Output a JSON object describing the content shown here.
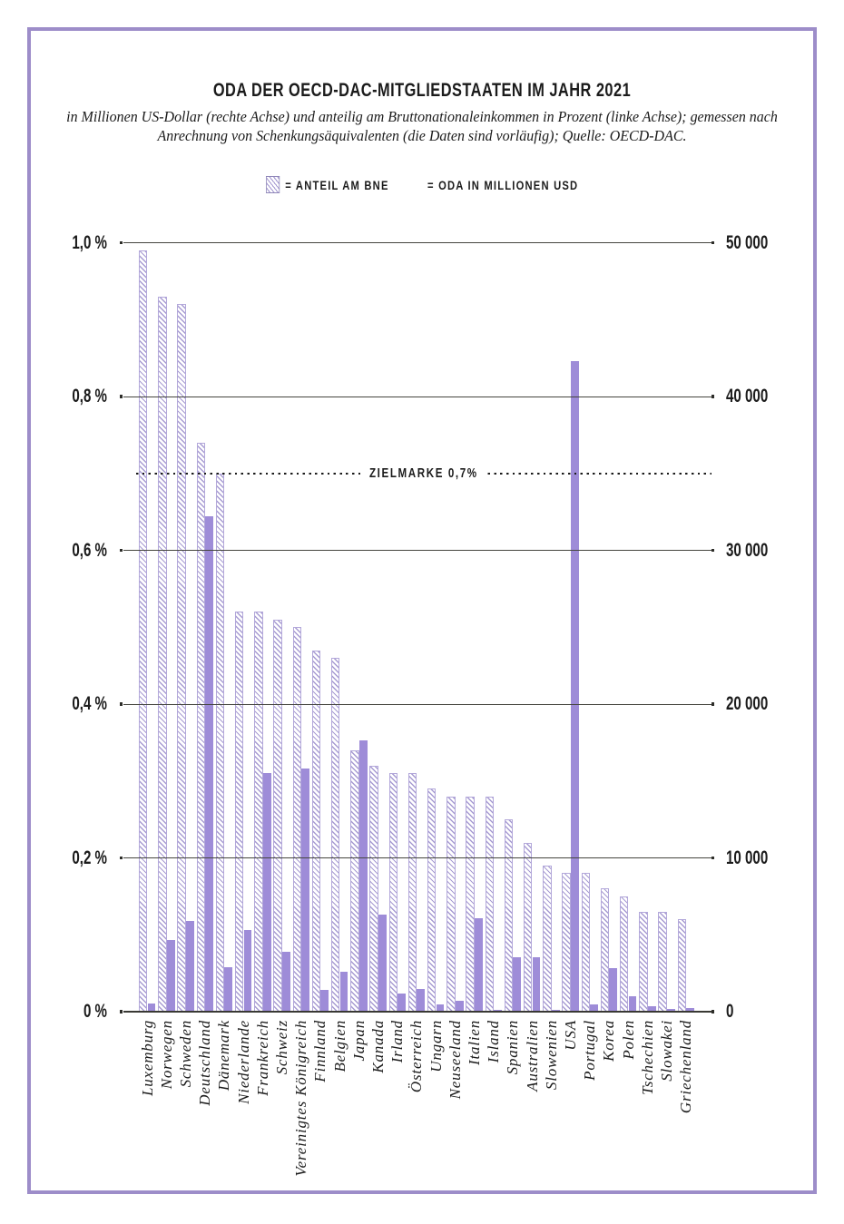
{
  "title": "ODA DER OECD-DAC-MITGLIEDSTAATEN IM JAHR 2021",
  "subtitle_line1": "in Millionen US-Dollar (rechte Achse) und anteilig am Bruttonationaleinkommen in Prozent (linke Achse); gemessen nach",
  "subtitle_line2": "Anrechnung von Schenkungsäquivalenten (die Daten sind vorläufig); Quelle: OECD-DAC.",
  "legend": {
    "share_label": "= ANTEIL AM BNE",
    "oda_label": "= ODA IN MILLIONEN USD"
  },
  "chart_data": {
    "type": "bar",
    "title": "ODA der OECD-DAC-Mitgliedstaaten im Jahr 2021",
    "categories": [
      "Luxemburg",
      "Norwegen",
      "Schweden",
      "Deutschland",
      "Dänemark",
      "Niederlande",
      "Frankreich",
      "Schweiz",
      "Vereinigtes Königreich",
      "Finnland",
      "Belgien",
      "Japan",
      "Kanada",
      "Irland",
      "Österreich",
      "Ungarn",
      "Neuseeland",
      "Italien",
      "Island",
      "Spanien",
      "Australien",
      "Slowenien",
      "USA",
      "Portugal",
      "Korea",
      "Polen",
      "Tschechien",
      "Slowakei",
      "Griechenland"
    ],
    "series": [
      {
        "name": "Anteil am BNE",
        "axis": "left",
        "unit": "% des BNE",
        "style": "hatched",
        "values": [
          0.99,
          0.93,
          0.92,
          0.74,
          0.7,
          0.52,
          0.52,
          0.51,
          0.5,
          0.47,
          0.46,
          0.34,
          0.32,
          0.31,
          0.31,
          0.29,
          0.28,
          0.28,
          0.28,
          0.25,
          0.22,
          0.19,
          0.18,
          0.18,
          0.16,
          0.15,
          0.13,
          0.13,
          0.12
        ]
      },
      {
        "name": "ODA in Millionen USD",
        "axis": "right",
        "unit": "Mio. USD",
        "style": "solid",
        "values": [
          539,
          4673,
          5927,
          32232,
          2874,
          5288,
          15506,
          3911,
          15814,
          1431,
          2570,
          17634,
          6303,
          1169,
          1461,
          452,
          681,
          6085,
          68,
          3544,
          3546,
          114,
          42311,
          450,
          2855,
          976,
          362,
          151,
          264
        ]
      }
    ],
    "left_axis": {
      "ticks": [
        "1,0 %",
        "0,8 %",
        "0,6 %",
        "0,4 %",
        "0,2 %",
        "0 %"
      ],
      "range": [
        0,
        1.0
      ]
    },
    "right_axis": {
      "ticks": [
        "50 000",
        "40 000",
        "30 000",
        "20 000",
        "10 000",
        "0"
      ],
      "range": [
        0,
        50000
      ]
    },
    "target_line": {
      "value": 0.7,
      "axis": "left",
      "label": "ZIELMARKE 0,7%"
    },
    "grid": true,
    "legend_position": "top",
    "colors": {
      "solid_bar": "#9e8cd8",
      "hatch_line": "#a79bd2",
      "hatch_border": "#b3a8da",
      "gridline": "#45453f",
      "text": "#1b1b1b",
      "frame": "#9d8dc9"
    }
  }
}
